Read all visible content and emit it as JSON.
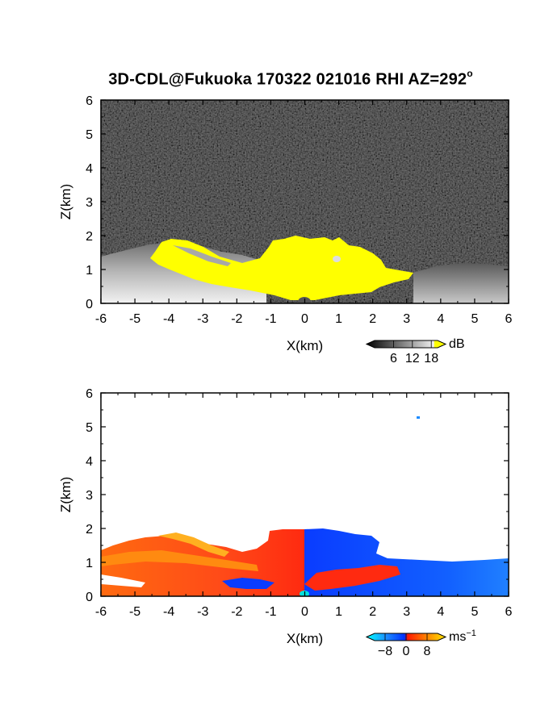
{
  "title": {
    "text": "3D-CDL@Fukuoka 170322 021016 RHI AZ=292",
    "degree_mark": "o"
  },
  "chart_data": [
    {
      "type": "heatmap",
      "panel": "top",
      "quantity": "backscatter intensity",
      "xlabel": "X(km)",
      "ylabel": "Z(km)",
      "xlim": [
        -6,
        6
      ],
      "ylim": [
        0,
        6
      ],
      "xticks": [
        "-6",
        "-5",
        "-4",
        "-3",
        "-2",
        "-1",
        "0",
        "1",
        "2",
        "3",
        "4",
        "5",
        "6"
      ],
      "yticks": [
        "0",
        "1",
        "2",
        "3",
        "4",
        "5",
        "6"
      ],
      "colorbar": {
        "unit": "dB",
        "tick_labels": [
          "6",
          "12",
          "18"
        ],
        "tick_values": [
          6,
          12,
          18
        ],
        "range": [
          0,
          20
        ],
        "colors": [
          "#000000",
          "#ffffff",
          "#ffff00"
        ]
      },
      "background_color": "#262626",
      "regions": [
        {
          "name": "strong echo (>18 dB)",
          "color": "#ffff00",
          "x_range": [
            -4.3,
            3.2
          ],
          "z_range": [
            0,
            1.9
          ]
        },
        {
          "name": "gray echo layer west",
          "color": "#b0b0b0",
          "x_range": [
            -6,
            -1.2
          ],
          "z_range": [
            0,
            1.4
          ]
        },
        {
          "name": "gray echo layer east",
          "color": "#8a8a8a",
          "x_range": [
            3.2,
            6
          ],
          "z_range": [
            0,
            1.0
          ]
        }
      ]
    },
    {
      "type": "heatmap",
      "panel": "bottom",
      "quantity": "radial velocity",
      "xlabel": "X(km)",
      "ylabel": "Z(km)",
      "xlim": [
        -6,
        6
      ],
      "ylim": [
        0,
        6
      ],
      "xticks": [
        "-6",
        "-5",
        "-4",
        "-3",
        "-2",
        "-1",
        "0",
        "1",
        "2",
        "3",
        "4",
        "5",
        "6"
      ],
      "yticks": [
        "0",
        "1",
        "2",
        "3",
        "4",
        "5",
        "6"
      ],
      "colorbar": {
        "unit": "ms",
        "unit_exponent": "−1",
        "tick_labels": [
          "−8",
          "0",
          "8"
        ],
        "tick_values": [
          -8,
          0,
          8
        ],
        "range": [
          -12,
          12
        ],
        "colors": [
          "#00ffff",
          "#0050ff",
          "#ff2000",
          "#ff8000",
          "#ffe000"
        ]
      },
      "background_color": "#ffffff",
      "regions": [
        {
          "name": "receding flow west",
          "sign": "positive",
          "color": "#ff4020",
          "x_range": [
            -6,
            0
          ],
          "z_range": [
            0,
            1.9
          ]
        },
        {
          "name": "approaching flow east",
          "sign": "negative",
          "color": "#1050ff",
          "x_range": [
            0,
            6
          ],
          "z_range": [
            0,
            1.9
          ]
        }
      ]
    }
  ]
}
